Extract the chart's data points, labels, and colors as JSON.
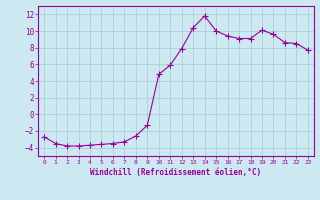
{
  "x": [
    0,
    1,
    2,
    3,
    4,
    5,
    6,
    7,
    8,
    9,
    10,
    11,
    12,
    13,
    14,
    15,
    16,
    17,
    18,
    19,
    20,
    21,
    22,
    23
  ],
  "y": [
    -2.7,
    -3.5,
    -3.8,
    -3.8,
    -3.7,
    -3.6,
    -3.5,
    -3.3,
    -2.6,
    -1.3,
    4.8,
    5.9,
    7.9,
    10.4,
    11.8,
    10.0,
    9.4,
    9.1,
    9.1,
    10.1,
    9.6,
    8.6,
    8.5,
    7.7
  ],
  "line_color": "#990099",
  "marker": "+",
  "marker_size": 4,
  "bg_color": "#cce8f0",
  "grid_color": "#aac8d8",
  "xlabel": "Windchill (Refroidissement éolien,°C)",
  "ylabel": "",
  "yticks": [
    -4,
    -2,
    0,
    2,
    4,
    6,
    8,
    10,
    12
  ],
  "xtick_labels": [
    "0",
    "1",
    "2",
    "3",
    "4",
    "5",
    "6",
    "7",
    "8",
    "9",
    "10",
    "11",
    "12",
    "13",
    "14",
    "15",
    "16",
    "17",
    "18",
    "19",
    "20",
    "21",
    "22",
    "23"
  ],
  "xlim": [
    -0.5,
    23.5
  ],
  "ylim": [
    -5,
    13
  ],
  "label_color": "#990099",
  "tick_color": "#990099"
}
